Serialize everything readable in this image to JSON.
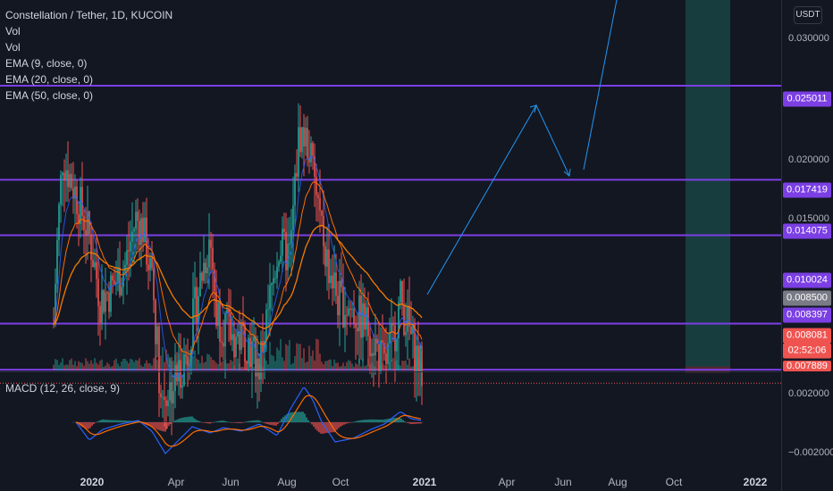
{
  "legend": {
    "title": "Constellation / Tether, 1D, KUCOIN",
    "lines": [
      "Vol",
      "Vol",
      "EMA (9, close, 0)",
      "EMA (20, close, 0)",
      "EMA (50, close, 0)"
    ]
  },
  "macd_legend": "MACD (12, 26, close, 9)",
  "currency": "USDT",
  "price_ticks": [
    "0.030000",
    "0.020000",
    "0.015000"
  ],
  "price_badges": [
    {
      "label": "0.025011",
      "color": "#7b3fe4"
    },
    {
      "label": "0.017419",
      "color": "#7b3fe4"
    },
    {
      "label": "0.014075",
      "color": "#7b3fe4"
    },
    {
      "label": "0.010024",
      "color": "#7b3fe4"
    },
    {
      "label": "0.008500",
      "color": "#787b86"
    },
    {
      "label": "0.008397",
      "color": "#7b3fe4"
    },
    {
      "label": "0.008081",
      "color": "#ef5350"
    },
    {
      "label": "02:52:06",
      "color": "#ef5350"
    },
    {
      "label": "0.007889",
      "color": "#ef5350"
    }
  ],
  "macd_ticks": [
    "0.002000",
    "−0.002000"
  ],
  "time_ticks": [
    {
      "label": "2020",
      "bold": true
    },
    {
      "label": "Apr",
      "bold": false
    },
    {
      "label": "Jun",
      "bold": false
    },
    {
      "label": "Aug",
      "bold": false
    },
    {
      "label": "Oct",
      "bold": false
    },
    {
      "label": "2021",
      "bold": true
    },
    {
      "label": "Apr",
      "bold": false
    },
    {
      "label": "Jun",
      "bold": false
    },
    {
      "label": "Aug",
      "bold": false
    },
    {
      "label": "Oct",
      "bold": false
    },
    {
      "label": "2022",
      "bold": true
    }
  ],
  "horizontal_levels": [
    "0.025011",
    "0.017419",
    "0.014075",
    "0.010024",
    "0.008397"
  ],
  "colors": {
    "background": "#131722",
    "level_line": "#7b3fe4",
    "up_candle": "#26a69a",
    "down_candle": "#ef5350",
    "ema9": "#2962ff",
    "ema20": "#ff6d00",
    "ema50": "#f57c00",
    "projection": "#2196f3",
    "position_zone": "#1e5c57"
  }
}
